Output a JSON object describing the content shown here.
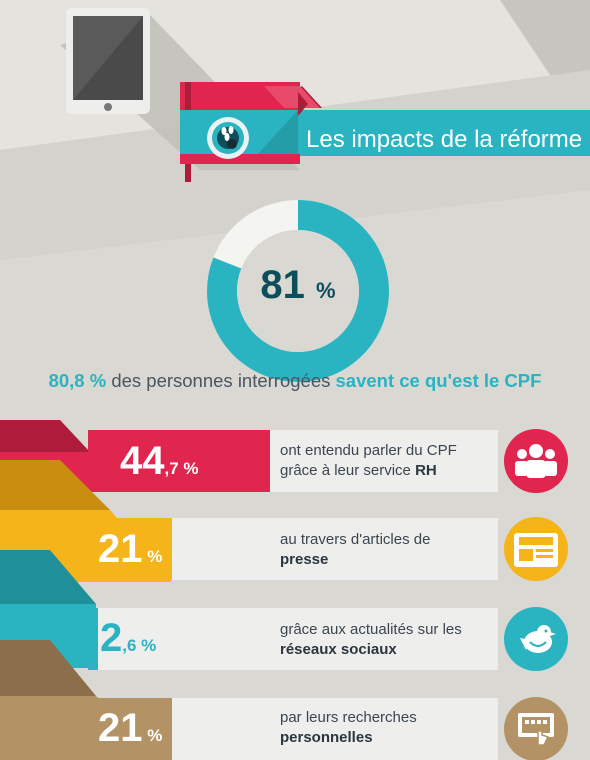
{
  "banner": {
    "title": "Les impacts de la réforme"
  },
  "donut": {
    "value": "81",
    "unit": "%"
  },
  "summary": {
    "percent": "80,8 %",
    "text": "des personnes interrogées",
    "highlight": "savent ce qu'est le CPF"
  },
  "rows": [
    {
      "value_main": "44",
      "value_decimal": ",7",
      "unit": "%",
      "line1": "ont entendu parler du CPF",
      "line2_plain": "grâce à leur service ",
      "line2_bold": "RH",
      "icon": "people-icon",
      "color": "#e0254f"
    },
    {
      "value_main": "21",
      "value_decimal": "",
      "unit": "%",
      "line1": "au travers d'articles de",
      "line2_plain": "",
      "line2_bold": "presse",
      "icon": "newspaper-icon",
      "color": "#f4b41a"
    },
    {
      "value_main": "2",
      "value_decimal": ",6",
      "unit": "%",
      "line1": "grâce aux actualités sur les",
      "line2_plain": "",
      "line2_bold": "réseaux sociaux",
      "icon": "bird-icon",
      "color": "#2ab3c0"
    },
    {
      "value_main": "21",
      "value_decimal": "",
      "unit": "%",
      "line1": "par leurs recherches",
      "line2_plain": "",
      "line2_bold": "personnelles",
      "icon": "touchscreen-icon",
      "color": "#b39265"
    }
  ],
  "chart_data": {
    "type": "bar",
    "categories": [
      "service RH",
      "presse",
      "réseaux sociaux",
      "recherches personnelles"
    ],
    "values": [
      44.7,
      21,
      2.6,
      21
    ],
    "donut_value": 81,
    "donut_summary_value": 80.8
  },
  "colors": {
    "teal": "#2ab3c0",
    "red": "#e0254f",
    "yellow": "#f4b41a",
    "brown": "#b39265",
    "dark": "#0e4d5a"
  }
}
